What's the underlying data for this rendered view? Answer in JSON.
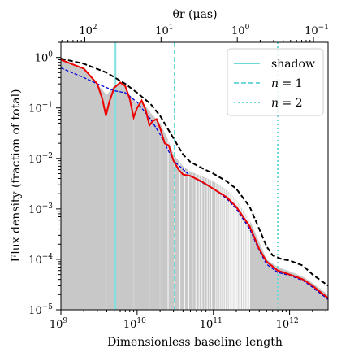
{
  "chart_data": {
    "type": "line",
    "xscale": "log",
    "yscale": "log",
    "xlabel": "Dimensionless baseline length",
    "ylabel": "Flux density (fraction of total)",
    "top_xlabel": "θr (μas)",
    "xlim": [
      1000000000.0,
      3200000000000.0
    ],
    "ylim": [
      1e-05,
      2
    ],
    "x_ticks": [
      {
        "value": 1000000000.0,
        "base": "10",
        "exp": "9"
      },
      {
        "value": 10000000000.0,
        "base": "10",
        "exp": "10"
      },
      {
        "value": 100000000000.0,
        "base": "10",
        "exp": "11"
      },
      {
        "value": 1000000000000.0,
        "base": "10",
        "exp": "12"
      }
    ],
    "y_ticks": [
      {
        "value": 1e-05,
        "base": "10",
        "exp": "−5"
      },
      {
        "value": 0.0001,
        "base": "10",
        "exp": "−4"
      },
      {
        "value": 0.001,
        "base": "10",
        "exp": "−3"
      },
      {
        "value": 0.01,
        "base": "10",
        "exp": "−2"
      },
      {
        "value": 0.1,
        "base": "10",
        "exp": "−1"
      },
      {
        "value": 1,
        "base": "10",
        "exp": "0"
      }
    ],
    "top_ticks": [
      {
        "base": "10",
        "exp": "2",
        "theta": 100,
        "x": 2060000000.0
      },
      {
        "base": "10",
        "exp": "1",
        "theta": 10,
        "x": 20600000000.0
      },
      {
        "base": "10",
        "exp": "0",
        "theta": 1,
        "x": 206000000000.0
      },
      {
        "base": "10",
        "exp": "−1",
        "theta": 0.1,
        "x": 2060000000000.0
      }
    ],
    "vlines": [
      {
        "name": "shadow",
        "x": 5200000000.0,
        "style": "solid",
        "color": "#7fe0e0"
      },
      {
        "name": "n = 1",
        "x": 31000000000.0,
        "style": "dashed",
        "color": "#6fd8d8"
      },
      {
        "name": "n = 2",
        "x": 700000000000.0,
        "style": "dotted",
        "color": "#6fd8d8"
      }
    ],
    "legend": {
      "placement": "top-right",
      "entries": [
        {
          "label": "shadow",
          "style": "solid"
        },
        {
          "label": "n = 1",
          "italic_n": "n",
          "rest": " = 1",
          "style": "dashed"
        },
        {
          "label": "n = 2",
          "italic_n": "n",
          "rest": " = 2",
          "style": "dotted"
        }
      ]
    },
    "series": [
      {
        "color": "#000000",
        "style": "dashed",
        "points": [
          [
            1000000000.0,
            0.95
          ],
          [
            2000000000.0,
            0.75
          ],
          [
            4000000000.0,
            0.5
          ],
          [
            7000000000.0,
            0.3
          ],
          [
            10000000000.0,
            0.2
          ],
          [
            15000000000.0,
            0.12
          ],
          [
            20000000000.0,
            0.07
          ],
          [
            30000000000.0,
            0.025
          ],
          [
            40000000000.0,
            0.012
          ],
          [
            50000000000.0,
            0.0085
          ],
          [
            70000000000.0,
            0.0065
          ],
          [
            100000000000.0,
            0.005
          ],
          [
            150000000000.0,
            0.0035
          ],
          [
            200000000000.0,
            0.0025
          ],
          [
            300000000000.0,
            0.0011
          ],
          [
            400000000000.0,
            0.0004
          ],
          [
            500000000000.0,
            0.00018
          ],
          [
            600000000000.0,
            0.00012
          ],
          [
            800000000000.0,
            0.0001
          ],
          [
            1000000000000.0,
            9.5e-05
          ],
          [
            1500000000000.0,
            7.5e-05
          ],
          [
            2000000000000.0,
            5e-05
          ],
          [
            3200000000000.0,
            3e-05
          ]
        ]
      },
      {
        "color": "#0000dd",
        "style": "dashed",
        "points": [
          [
            1000000000.0,
            0.62
          ],
          [
            2000000000.0,
            0.4
          ],
          [
            3000000000.0,
            0.3
          ],
          [
            5000000000.0,
            0.22
          ],
          [
            7000000000.0,
            0.2
          ],
          [
            10000000000.0,
            0.13
          ],
          [
            15000000000.0,
            0.06
          ],
          [
            20000000000.0,
            0.03
          ],
          [
            30000000000.0,
            0.009
          ],
          [
            50000000000.0,
            0.0045
          ],
          [
            100000000000.0,
            0.0025
          ],
          [
            150000000000.0,
            0.0016
          ],
          [
            200000000000.0,
            0.001
          ],
          [
            300000000000.0,
            0.0004
          ],
          [
            400000000000.0,
            0.00015
          ],
          [
            500000000000.0,
            8e-05
          ],
          [
            700000000000.0,
            5.5e-05
          ],
          [
            1000000000000.0,
            4.8e-05
          ],
          [
            1500000000000.0,
            3.8e-05
          ],
          [
            2000000000000.0,
            2.8e-05
          ],
          [
            3200000000000.0,
            1.6e-05
          ]
        ]
      },
      {
        "color": "#ee0000",
        "style": "solid",
        "points": [
          [
            1000000000.0,
            0.9
          ],
          [
            2000000000.0,
            0.6
          ],
          [
            3000000000.0,
            0.3
          ],
          [
            3500000000.0,
            0.15
          ],
          [
            3900000000.0,
            0.07
          ],
          [
            4300000000.0,
            0.13
          ],
          [
            5000000000.0,
            0.25
          ],
          [
            6000000000.0,
            0.32
          ],
          [
            7000000000.0,
            0.27
          ],
          [
            8000000000.0,
            0.15
          ],
          [
            9000000000.0,
            0.065
          ],
          [
            10000000000.0,
            0.1
          ],
          [
            11500000000.0,
            0.14
          ],
          [
            13000000000.0,
            0.09
          ],
          [
            14500000000.0,
            0.045
          ],
          [
            16000000000.0,
            0.055
          ],
          [
            18000000000.0,
            0.06
          ],
          [
            20000000000.0,
            0.04
          ],
          [
            23000000000.0,
            0.02
          ],
          [
            26000000000.0,
            0.018
          ],
          [
            30000000000.0,
            0.009
          ],
          [
            35000000000.0,
            0.006
          ],
          [
            40000000000.0,
            0.0048
          ],
          [
            50000000000.0,
            0.0045
          ],
          [
            70000000000.0,
            0.0035
          ],
          [
            100000000000.0,
            0.0025
          ],
          [
            150000000000.0,
            0.0017
          ],
          [
            200000000000.0,
            0.0011
          ],
          [
            300000000000.0,
            0.00045
          ],
          [
            400000000000.0,
            0.00016
          ],
          [
            500000000000.0,
            9e-05
          ],
          [
            700000000000.0,
            6e-05
          ],
          [
            1000000000000.0,
            5e-05
          ],
          [
            1500000000000.0,
            4e-05
          ],
          [
            2000000000000.0,
            3e-05
          ],
          [
            3200000000000.0,
            1.7e-05
          ]
        ]
      },
      {
        "color": "#bbbbbb",
        "style": "fill",
        "envelope": [
          [
            1000000000.0,
            0.9
          ],
          [
            2000000000.0,
            0.6
          ],
          [
            3000000000.0,
            0.3
          ],
          [
            4000000000.0,
            0.18
          ],
          [
            5000000000.0,
            0.28
          ],
          [
            6000000000.0,
            0.32
          ],
          [
            7000000000.0,
            0.27
          ],
          [
            8000000000.0,
            0.18
          ],
          [
            10000000000.0,
            0.12
          ],
          [
            11500000000.0,
            0.14
          ],
          [
            15000000000.0,
            0.08
          ],
          [
            20000000000.0,
            0.05
          ],
          [
            25000000000.0,
            0.025
          ],
          [
            30000000000.0,
            0.012
          ],
          [
            40000000000.0,
            0.007
          ],
          [
            50000000000.0,
            0.0055
          ],
          [
            70000000000.0,
            0.0045
          ],
          [
            100000000000.0,
            0.0035
          ],
          [
            150000000000.0,
            0.0024
          ],
          [
            200000000000.0,
            0.0015
          ],
          [
            300000000000.0,
            0.0006
          ],
          [
            400000000000.0,
            0.00022
          ],
          [
            500000000000.0,
            0.0001
          ],
          [
            700000000000.0,
            7e-05
          ],
          [
            1000000000000.0,
            5.8e-05
          ],
          [
            1500000000000.0,
            4.5e-05
          ],
          [
            2000000000000.0,
            3.4e-05
          ],
          [
            3200000000000.0,
            2e-05
          ]
        ],
        "nulls": [
          3900000000.0,
          9000000000.0,
          14500000000.0,
          20000000000.0,
          25500000000.0,
          31000000000.0,
          36500000000.0,
          42000000000.0,
          47500000000.0,
          53000000000.0,
          59000000000.0,
          65000000000.0,
          71000000000.0,
          77000000000.0,
          83000000000.0,
          89000000000.0,
          95000000000.0,
          102000000000.0,
          108000000000.0,
          114000000000.0,
          120000000000.0,
          126000000000.0,
          132000000000.0,
          138000000000.0,
          144000000000.0,
          150000000000.0,
          156000000000.0,
          162000000000.0,
          168000000000.0,
          174000000000.0,
          180000000000.0,
          186000000000.0,
          192000000000.0,
          198000000000.0,
          204000000000.0,
          210000000000.0,
          220000000000.0,
          230000000000.0,
          240000000000.0,
          250000000000.0,
          260000000000.0,
          270000000000.0,
          280000000000.0,
          290000000000.0,
          300000000000.0
        ]
      }
    ]
  }
}
